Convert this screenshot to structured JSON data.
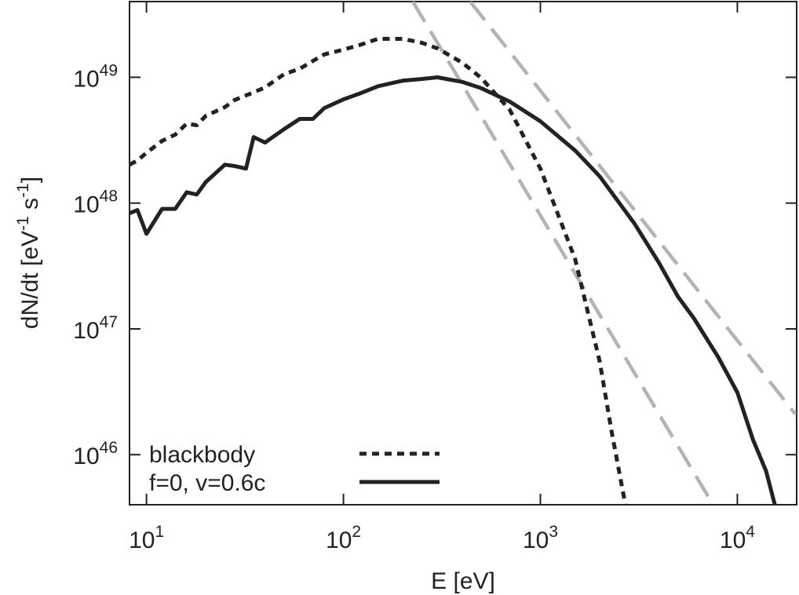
{
  "chart_data": {
    "type": "line",
    "xlabel": "E [eV]",
    "ylabel_parts": [
      {
        "text": "dN/dt [eV"
      },
      {
        "text": "-1",
        "sup": true
      },
      {
        "text": " s"
      },
      {
        "text": "-1",
        "sup": true
      },
      {
        "text": "]"
      }
    ],
    "xscale": "log",
    "yscale": "log",
    "xlim": [
      8.2,
      20000
    ],
    "ylim": [
      4e+45,
      4e+49
    ],
    "xticks": [
      {
        "value": 10,
        "label": "10",
        "exponent": "1"
      },
      {
        "value": 100,
        "label": "10",
        "exponent": "2"
      },
      {
        "value": 1000,
        "label": "10",
        "exponent": "3"
      },
      {
        "value": 10000,
        "label": "10",
        "exponent": "4"
      }
    ],
    "yticks": [
      {
        "value": 1e+46,
        "label": "10",
        "exponent": "46"
      },
      {
        "value": 1e+47,
        "label": "10",
        "exponent": "47"
      },
      {
        "value": 1e+48,
        "label": "10",
        "exponent": "48"
      },
      {
        "value": 1e+49,
        "label": "10",
        "exponent": "49"
      }
    ],
    "legend": "lower left",
    "series": [
      {
        "name": "blackbody",
        "color": "#222222",
        "style": "dotted",
        "x": [
          8.2,
          9,
          10,
          12,
          14,
          16,
          18,
          20,
          25,
          28,
          35,
          40,
          50,
          60,
          70,
          80,
          100,
          120,
          150,
          200,
          250,
          300,
          400,
          500,
          700,
          1000,
          1500,
          2000,
          2300,
          2700
        ],
        "values": [
          2.02e+48,
          2.18e+48,
          2.51e+48,
          3.12e+48,
          3.5e+48,
          4.28e+48,
          4.16e+48,
          4.94e+48,
          5.79e+48,
          6.59e+48,
          7.6e+48,
          8.3e+48,
          1.06e+49,
          1.17e+49,
          1.35e+49,
          1.52e+49,
          1.66e+49,
          1.8e+49,
          2.02e+49,
          2.02e+49,
          1.88e+49,
          1.7e+49,
          1.31e+49,
          9.9e+48,
          5.5e+48,
          1.88e+48,
          3.6e+47,
          5.5e+46,
          1.52e+46,
          4e+45
        ]
      },
      {
        "name": "f=0, v=0.6c",
        "color": "#222222",
        "style": "solid",
        "x": [
          8.2,
          9,
          10,
          12,
          14,
          16,
          18,
          20,
          25,
          28,
          32,
          35,
          40,
          50,
          60,
          70,
          80,
          100,
          120,
          150,
          200,
          250,
          300,
          400,
          500,
          700,
          1000,
          1500,
          2000,
          3000,
          4000,
          5000,
          6000,
          8000,
          10000,
          12000,
          14000,
          15500
        ],
        "values": [
          8.3e+47,
          8.8e+47,
          5.7e+47,
          9e+47,
          9e+47,
          1.22e+48,
          1.17e+48,
          1.47e+48,
          2.02e+48,
          1.97e+48,
          1.88e+48,
          3.35e+48,
          3.03e+48,
          3.87e+48,
          4.67e+48,
          4.67e+48,
          5.7e+48,
          6.68e+48,
          7.39e+48,
          8.5e+48,
          9.4e+48,
          9.7e+48,
          1e+49,
          9.2e+48,
          8.2e+48,
          6.4e+48,
          4.47e+48,
          2.62e+48,
          1.63e+48,
          6.9e+47,
          3.35e+47,
          1.8e+47,
          1.22e+47,
          5.96e+46,
          3.12e+46,
          1.32e+46,
          7.4e+45,
          4e+45
        ]
      }
    ],
    "reference_lines": [
      {
        "color": "#b3b3b3",
        "x": [
          225,
          7530
        ],
        "values": [
          4e+49,
          4e+45
        ]
      },
      {
        "color": "#b3b3b3",
        "x": [
          440,
          19700
        ],
        "values": [
          4e+49,
          2.1e+46
        ]
      }
    ]
  }
}
